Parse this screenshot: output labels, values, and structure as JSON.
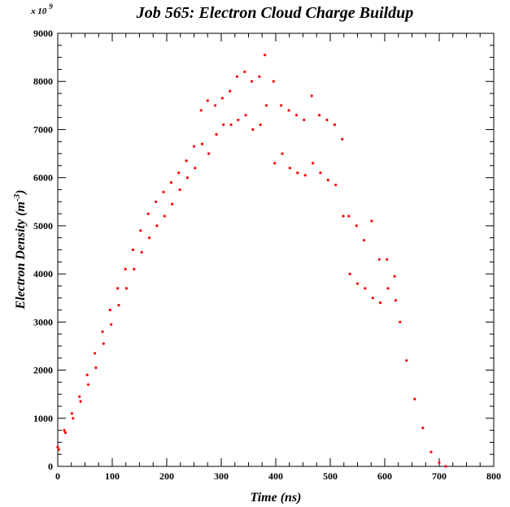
{
  "chart_data": {
    "type": "scatter",
    "title": "Job 565: Electron Cloud Charge Buildup",
    "xlabel": "Time (ns)",
    "ylabel_main": "Electron Density (m",
    "ylabel_exp": "-3",
    "ylabel_close": ")",
    "y_multiplier": "x 10",
    "y_multiplier_exp": "9",
    "xlim": [
      0,
      800
    ],
    "ylim": [
      0,
      9000
    ],
    "x_ticks": [
      0,
      100,
      200,
      300,
      400,
      500,
      600,
      700,
      800
    ],
    "y_ticks": [
      0,
      1000,
      2000,
      3000,
      4000,
      5000,
      6000,
      7000,
      8000,
      9000
    ],
    "grid": false,
    "color": "#ff0000",
    "series": [
      {
        "x": [
          0,
          2,
          12,
          14,
          26,
          28,
          40,
          42,
          54,
          56,
          68,
          70,
          82,
          84,
          96,
          98,
          110,
          112,
          124,
          126,
          138,
          140,
          152,
          154,
          166,
          168,
          180,
          182,
          194,
          196,
          208,
          210,
          222,
          224,
          236,
          238,
          250,
          252,
          263,
          265,
          275,
          277,
          289,
          291,
          302,
          304,
          316,
          318,
          329,
          331,
          343,
          345,
          356,
          358,
          370,
          372,
          380,
          383,
          396,
          398,
          410,
          412,
          424,
          426,
          438,
          440,
          452,
          454,
          466,
          468,
          480,
          482,
          494,
          496,
          508,
          510,
          522,
          524,
          534,
          536,
          548,
          550,
          562,
          564,
          576,
          578,
          590,
          592,
          604,
          606,
          618,
          620,
          628,
          640,
          655,
          670,
          685,
          700,
          712
        ],
        "y": [
          400,
          350,
          750,
          700,
          1100,
          1000,
          1450,
          1350,
          1900,
          1700,
          2350,
          2050,
          2800,
          2550,
          3250,
          2950,
          3700,
          3350,
          4100,
          3700,
          4500,
          4100,
          4900,
          4450,
          5250,
          4750,
          5500,
          5000,
          5700,
          5200,
          5900,
          5450,
          6100,
          5750,
          6350,
          6000,
          6650,
          6200,
          7400,
          6700,
          7600,
          6500,
          7500,
          6900,
          7650,
          7100,
          7800,
          7100,
          8100,
          7200,
          8200,
          7300,
          8000,
          7000,
          8100,
          7100,
          8550,
          7500,
          8000,
          6300,
          7500,
          6500,
          7400,
          6200,
          7300,
          6100,
          7200,
          6050,
          7700,
          6300,
          7300,
          6100,
          7200,
          5950,
          7100,
          5850,
          6800,
          5200,
          5200,
          4000,
          5000,
          3800,
          4700,
          3700,
          5100,
          3500,
          4300,
          3400,
          4300,
          3700,
          3950,
          3450,
          3000,
          2200,
          1400,
          800,
          300,
          80,
          0
        ]
      }
    ]
  }
}
